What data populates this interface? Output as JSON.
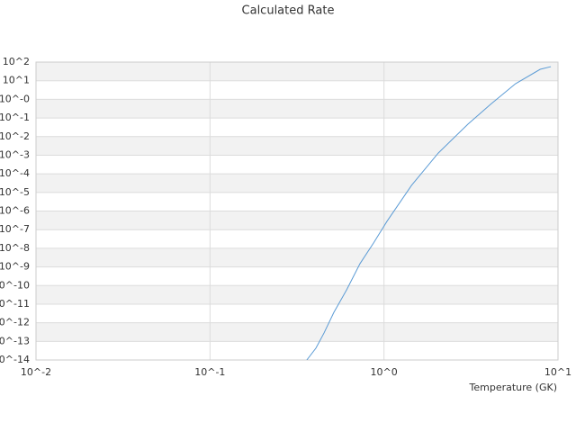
{
  "chart_data": {
    "type": "line",
    "title": "Calculated Rate",
    "x_label": "Temperature (GK)",
    "log_x": true,
    "log_y": true,
    "grid_bands": true,
    "xlim": [
      0.01,
      10
    ],
    "ylim": [
      1e-14,
      100
    ],
    "xticks": [
      {
        "value": 0.01,
        "label": "10^-2"
      },
      {
        "value": 0.1,
        "label": "10^-1"
      },
      {
        "value": 1,
        "label": "10^0"
      },
      {
        "value": 10,
        "label": "10^1"
      }
    ],
    "yticks": [
      {
        "value": 100,
        "label": "10^2"
      },
      {
        "value": 10,
        "label": "10^1"
      },
      {
        "value": 1,
        "label": "10^-0"
      },
      {
        "value": 0.1,
        "label": "10^-1"
      },
      {
        "value": 0.01,
        "label": "10^-2"
      },
      {
        "value": 0.001,
        "label": "10^-3"
      },
      {
        "value": 0.0001,
        "label": "10^-4"
      },
      {
        "value": 1e-05,
        "label": "10^-5"
      },
      {
        "value": 1e-06,
        "label": "10^-6"
      },
      {
        "value": 1e-07,
        "label": "10^-7"
      },
      {
        "value": 1e-08,
        "label": "10^-8"
      },
      {
        "value": 1e-09,
        "label": "10^-9"
      },
      {
        "value": 1e-10,
        "label": "10^-10"
      },
      {
        "value": 1e-11,
        "label": "10^-11"
      },
      {
        "value": 1e-12,
        "label": "10^-12"
      },
      {
        "value": 1e-13,
        "label": "10^-13"
      },
      {
        "value": 1e-14,
        "label": "10^-14"
      }
    ],
    "x": [
      0.36,
      0.406,
      0.452,
      0.515,
      0.61,
      0.728,
      0.87,
      1.04,
      1.44,
      2.05,
      3.04,
      4.1,
      5.7,
      7.9,
      9.1
    ],
    "series": [
      {
        "color": "#5b9bd5",
        "values": [
          1e-14,
          4.3e-14,
          2.8e-13,
          3.6e-12,
          5.9e-11,
          1.5e-09,
          1.9e-08,
          2.8e-07,
          2.4e-05,
          0.0013,
          0.047,
          0.54,
          6.9,
          41,
          57
        ]
      }
    ]
  }
}
